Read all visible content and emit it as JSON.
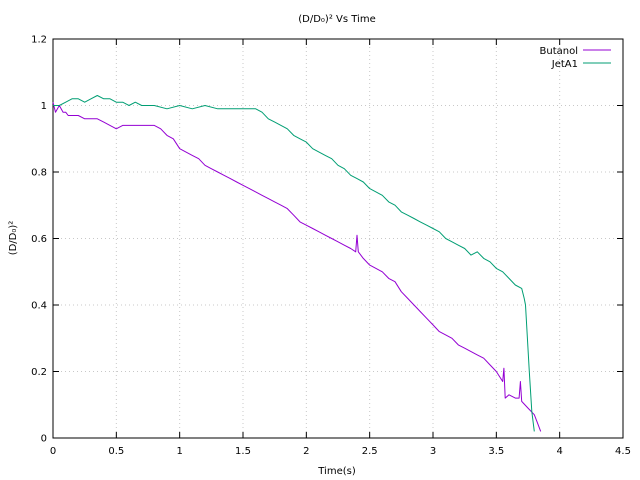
{
  "chart_data": {
    "type": "line",
    "title": "(D/D₀)² Vs Time",
    "xlabel": "Time(s)",
    "ylabel": "(D/D₀)²",
    "xlim": [
      0,
      4.5
    ],
    "ylim": [
      0,
      1.2
    ],
    "x_ticks": [
      0,
      0.5,
      1,
      1.5,
      2,
      2.5,
      3,
      3.5,
      4,
      4.5
    ],
    "x_tick_labels": [
      "0",
      "0.5",
      "1",
      "1.5",
      "2",
      "2.5",
      "3",
      "3.5",
      "4",
      "4.5"
    ],
    "y_ticks": [
      0,
      0.2,
      0.4,
      0.6,
      0.8,
      1,
      1.2
    ],
    "y_tick_labels": [
      "0",
      "0.2",
      "0.4",
      "0.6",
      "0.8",
      "1",
      "1.2"
    ],
    "grid": true,
    "legend_position": "top-right",
    "series": [
      {
        "name": "Butanol",
        "color": "#9400d3",
        "points": [
          [
            0.0,
            1.01
          ],
          [
            0.02,
            0.98
          ],
          [
            0.05,
            1.0
          ],
          [
            0.08,
            0.98
          ],
          [
            0.1,
            0.98
          ],
          [
            0.12,
            0.97
          ],
          [
            0.2,
            0.97
          ],
          [
            0.25,
            0.96
          ],
          [
            0.3,
            0.96
          ],
          [
            0.35,
            0.96
          ],
          [
            0.4,
            0.95
          ],
          [
            0.45,
            0.94
          ],
          [
            0.5,
            0.93
          ],
          [
            0.55,
            0.94
          ],
          [
            0.6,
            0.94
          ],
          [
            0.7,
            0.94
          ],
          [
            0.8,
            0.94
          ],
          [
            0.85,
            0.93
          ],
          [
            0.9,
            0.91
          ],
          [
            0.95,
            0.9
          ],
          [
            1.0,
            0.87
          ],
          [
            1.05,
            0.86
          ],
          [
            1.1,
            0.85
          ],
          [
            1.15,
            0.84
          ],
          [
            1.2,
            0.82
          ],
          [
            1.25,
            0.81
          ],
          [
            1.3,
            0.8
          ],
          [
            1.35,
            0.79
          ],
          [
            1.4,
            0.78
          ],
          [
            1.45,
            0.77
          ],
          [
            1.5,
            0.76
          ],
          [
            1.55,
            0.75
          ],
          [
            1.6,
            0.74
          ],
          [
            1.65,
            0.73
          ],
          [
            1.7,
            0.72
          ],
          [
            1.75,
            0.71
          ],
          [
            1.8,
            0.7
          ],
          [
            1.85,
            0.69
          ],
          [
            1.9,
            0.67
          ],
          [
            1.95,
            0.65
          ],
          [
            2.0,
            0.64
          ],
          [
            2.05,
            0.63
          ],
          [
            2.1,
            0.62
          ],
          [
            2.15,
            0.61
          ],
          [
            2.2,
            0.6
          ],
          [
            2.25,
            0.59
          ],
          [
            2.3,
            0.58
          ],
          [
            2.35,
            0.57
          ],
          [
            2.39,
            0.56
          ],
          [
            2.4,
            0.61
          ],
          [
            2.41,
            0.56
          ],
          [
            2.45,
            0.54
          ],
          [
            2.5,
            0.52
          ],
          [
            2.55,
            0.51
          ],
          [
            2.6,
            0.5
          ],
          [
            2.65,
            0.48
          ],
          [
            2.7,
            0.47
          ],
          [
            2.75,
            0.44
          ],
          [
            2.8,
            0.42
          ],
          [
            2.85,
            0.4
          ],
          [
            2.9,
            0.38
          ],
          [
            2.95,
            0.36
          ],
          [
            3.0,
            0.34
          ],
          [
            3.05,
            0.32
          ],
          [
            3.1,
            0.31
          ],
          [
            3.15,
            0.3
          ],
          [
            3.2,
            0.28
          ],
          [
            3.25,
            0.27
          ],
          [
            3.3,
            0.26
          ],
          [
            3.35,
            0.25
          ],
          [
            3.4,
            0.24
          ],
          [
            3.45,
            0.22
          ],
          [
            3.5,
            0.2
          ],
          [
            3.55,
            0.17
          ],
          [
            3.56,
            0.21
          ],
          [
            3.57,
            0.12
          ],
          [
            3.6,
            0.13
          ],
          [
            3.65,
            0.12
          ],
          [
            3.68,
            0.12
          ],
          [
            3.69,
            0.17
          ],
          [
            3.7,
            0.11
          ],
          [
            3.75,
            0.09
          ],
          [
            3.8,
            0.07
          ],
          [
            3.82,
            0.05
          ],
          [
            3.85,
            0.02
          ]
        ]
      },
      {
        "name": "JetA1",
        "color": "#009e73",
        "points": [
          [
            0.0,
            1.0
          ],
          [
            0.05,
            1.0
          ],
          [
            0.1,
            1.01
          ],
          [
            0.15,
            1.02
          ],
          [
            0.2,
            1.02
          ],
          [
            0.25,
            1.01
          ],
          [
            0.3,
            1.02
          ],
          [
            0.35,
            1.03
          ],
          [
            0.4,
            1.02
          ],
          [
            0.45,
            1.02
          ],
          [
            0.5,
            1.01
          ],
          [
            0.55,
            1.01
          ],
          [
            0.6,
            1.0
          ],
          [
            0.65,
            1.01
          ],
          [
            0.7,
            1.0
          ],
          [
            0.8,
            1.0
          ],
          [
            0.9,
            0.99
          ],
          [
            1.0,
            1.0
          ],
          [
            1.1,
            0.99
          ],
          [
            1.2,
            1.0
          ],
          [
            1.3,
            0.99
          ],
          [
            1.4,
            0.99
          ],
          [
            1.5,
            0.99
          ],
          [
            1.6,
            0.99
          ],
          [
            1.65,
            0.98
          ],
          [
            1.7,
            0.96
          ],
          [
            1.75,
            0.95
          ],
          [
            1.8,
            0.94
          ],
          [
            1.85,
            0.93
          ],
          [
            1.9,
            0.91
          ],
          [
            1.95,
            0.9
          ],
          [
            2.0,
            0.89
          ],
          [
            2.05,
            0.87
          ],
          [
            2.1,
            0.86
          ],
          [
            2.15,
            0.85
          ],
          [
            2.2,
            0.84
          ],
          [
            2.25,
            0.82
          ],
          [
            2.3,
            0.81
          ],
          [
            2.35,
            0.79
          ],
          [
            2.4,
            0.78
          ],
          [
            2.45,
            0.77
          ],
          [
            2.5,
            0.75
          ],
          [
            2.55,
            0.74
          ],
          [
            2.6,
            0.73
          ],
          [
            2.65,
            0.71
          ],
          [
            2.7,
            0.7
          ],
          [
            2.75,
            0.68
          ],
          [
            2.8,
            0.67
          ],
          [
            2.85,
            0.66
          ],
          [
            2.9,
            0.65
          ],
          [
            2.95,
            0.64
          ],
          [
            3.0,
            0.63
          ],
          [
            3.05,
            0.62
          ],
          [
            3.1,
            0.6
          ],
          [
            3.15,
            0.59
          ],
          [
            3.2,
            0.58
          ],
          [
            3.25,
            0.57
          ],
          [
            3.3,
            0.55
          ],
          [
            3.35,
            0.56
          ],
          [
            3.4,
            0.54
          ],
          [
            3.45,
            0.53
          ],
          [
            3.5,
            0.51
          ],
          [
            3.55,
            0.5
          ],
          [
            3.6,
            0.48
          ],
          [
            3.65,
            0.46
          ],
          [
            3.7,
            0.45
          ],
          [
            3.72,
            0.42
          ],
          [
            3.73,
            0.4
          ],
          [
            3.76,
            0.2
          ],
          [
            3.78,
            0.08
          ],
          [
            3.8,
            0.02
          ]
        ]
      }
    ]
  }
}
